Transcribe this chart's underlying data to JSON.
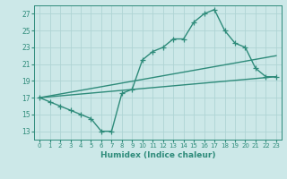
{
  "line1_x": [
    0,
    1,
    2,
    3,
    4,
    5,
    6,
    7,
    8,
    9,
    10,
    11,
    12,
    13,
    14,
    15,
    16,
    17,
    18,
    19,
    20,
    21,
    22,
    23
  ],
  "line1_y": [
    17,
    16.5,
    16.0,
    15.5,
    15.0,
    14.5,
    13.0,
    13.0,
    17.5,
    18.0,
    21.5,
    22.5,
    23.0,
    24.0,
    24.0,
    26.0,
    27.0,
    27.5,
    25.0,
    23.5,
    23.0,
    20.5,
    19.5,
    19.5
  ],
  "line2_x": [
    0,
    23
  ],
  "line2_y": [
    17.0,
    22.0
  ],
  "line3_x": [
    0,
    23
  ],
  "line3_y": [
    17.0,
    19.5
  ],
  "line_color": "#2e8b7a",
  "bg_color": "#cce8e8",
  "grid_color": "#afd4d4",
  "xlabel": "Humidex (Indice chaleur)",
  "xlim": [
    -0.5,
    23.5
  ],
  "ylim": [
    12,
    28
  ],
  "yticks": [
    13,
    15,
    17,
    19,
    21,
    23,
    25,
    27
  ],
  "xticks": [
    0,
    1,
    2,
    3,
    4,
    5,
    6,
    7,
    8,
    9,
    10,
    11,
    12,
    13,
    14,
    15,
    16,
    17,
    18,
    19,
    20,
    21,
    22,
    23
  ],
  "marker": "+",
  "markersize": 4,
  "linewidth": 1.0
}
